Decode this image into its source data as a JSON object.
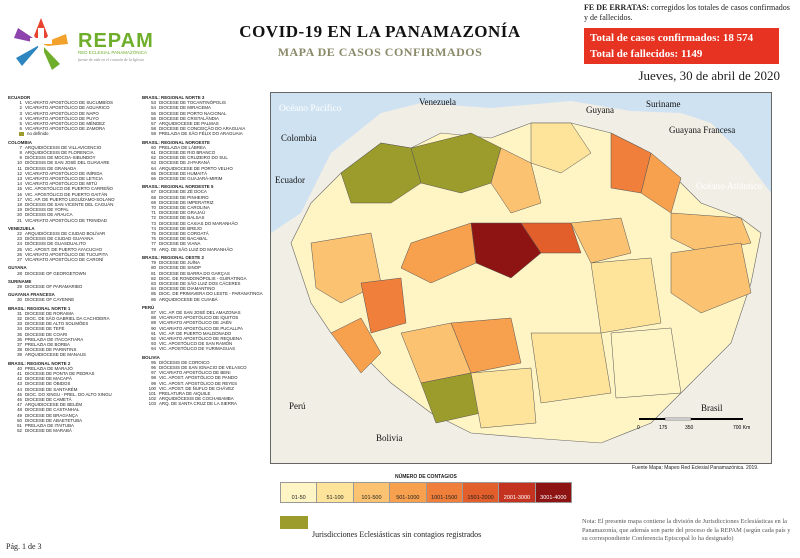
{
  "logo": {
    "name": "REPAM",
    "sub": "RED ECLESIAL PANAMAZÓNICA",
    "tagline": "fuente de vida en el corazón de la Iglesia"
  },
  "title": "COVID-19 EN LA PANAMAZONÍA",
  "subtitle": "MAPA DE CASOS CONFIRMADOS",
  "errata": {
    "label": "FE DE ERRATAS:",
    "text": "corregidos los totales de casos confirmados y de fallecidos."
  },
  "totals": {
    "confirmed_label": "Total de casos confirmados:",
    "confirmed": "18 574",
    "deaths_label": "Total de fallecidos:",
    "deaths": "1149"
  },
  "date": "Jueves, 30 de abril de 2020",
  "sections_left": [
    {
      "title": "ECUADOR",
      "items": [
        {
          "n": "1",
          "name": "VICARIATO APOSTÓLICO DE SUCUMBÍOS"
        },
        {
          "n": "2",
          "name": "VICARIATO APOSTÓLICO DE AGUARICO"
        },
        {
          "n": "3",
          "name": "VICARIATO APOSTÓLICO DE NAPO"
        },
        {
          "n": "4",
          "name": "VICARIATO APOSTÓLICO DE PUYO"
        },
        {
          "n": "5",
          "name": "VICARIATO APOSTÓLICO DE MÉNDEZ"
        },
        {
          "n": "6",
          "name": "VICARIATO APOSTÓLICO DE ZAMORA"
        },
        {
          "n": "",
          "name": "no definido",
          "swatch": true
        }
      ]
    },
    {
      "title": "COLOMBIA",
      "items": [
        {
          "n": "7",
          "name": "ARQUIDIÓCESIS DE VILLAVICENCIO"
        },
        {
          "n": "8",
          "name": "ARQUIDIÓCESIS DE FLORENCIA"
        },
        {
          "n": "9",
          "name": "DIÓCESIS DE MOCOA-SIBUNDOY"
        },
        {
          "n": "10",
          "name": "DIÓCESIS DE SAN JOSÉ DEL GUAVIARE"
        },
        {
          "n": "11",
          "name": "DIÓCESIS DE GRANADA"
        },
        {
          "n": "12",
          "name": "VICARIATO APOSTÓLICO DE INÍRIDA"
        },
        {
          "n": "13",
          "name": "VICARIATO APOSTÓLICO DE LETICIA"
        },
        {
          "n": "14",
          "name": "VICARIATO APOSTÓLICO DE MITÚ"
        },
        {
          "n": "15",
          "name": "VIC. APOSTÓLICO DE PUERTO CARREÑO"
        },
        {
          "n": "16",
          "name": "VIC. APOSTÓLICO DE PUERTO GAITÁN"
        },
        {
          "n": "17",
          "name": "VIC. AP. DE PUERTO LEGUÍZAMO-SOLANO"
        },
        {
          "n": "18",
          "name": "DIÓCESIS DE SAN VICENTE DEL CAGUÁN"
        },
        {
          "n": "19",
          "name": "DIÓCESIS DE YOPAL"
        },
        {
          "n": "20",
          "name": "DIÓCESIS DE ARAUCA"
        },
        {
          "n": "21",
          "name": "VICARIATO APOSTÓLICO DE TRINIDAD"
        }
      ]
    },
    {
      "title": "VENEZUELA",
      "items": [
        {
          "n": "22",
          "name": "ARQUIDIÓCESIS DE CIUDAD BOLÍVAR"
        },
        {
          "n": "23",
          "name": "DIÓCESIS DE CIUDAD GUAYANA"
        },
        {
          "n": "24",
          "name": "DIÓCESIS DE GUASDUALITO"
        },
        {
          "n": "25",
          "name": "VIC. APOST. DE PUERTO AYACUCHO"
        },
        {
          "n": "26",
          "name": "VICARIATO APOSTÓLICO DE TUCUPITA"
        },
        {
          "n": "27",
          "name": "VICARIATO APOSTÓLICO DE CARONÍ"
        }
      ]
    },
    {
      "title": "GUYANA",
      "items": [
        {
          "n": "28",
          "name": "DIOCESE OF GEORGETOWN"
        }
      ]
    },
    {
      "title": "SURINAME",
      "items": [
        {
          "n": "29",
          "name": "DIOCESE OF PARAMARIBO"
        }
      ]
    },
    {
      "title": "GUAYANA FRANCESA",
      "items": [
        {
          "n": "30",
          "name": "DIOCESE OF CAYENNE"
        }
      ]
    },
    {
      "title": "BRASIL: REGIONAL NORTE 1",
      "items": [
        {
          "n": "31",
          "name": "DIOCESE DE RORAIMA"
        },
        {
          "n": "32",
          "name": "DIOC. DE SÃO GABRIEL DA CACHOEIRA"
        },
        {
          "n": "33",
          "name": "DIOCESE DE ALTO SOLIMÕES"
        },
        {
          "n": "34",
          "name": "DIOCESE DE TEFÉ"
        },
        {
          "n": "35",
          "name": "DIOCESE DE COARI"
        },
        {
          "n": "36",
          "name": "PRELAZIA DE ITACOATIARA"
        },
        {
          "n": "37",
          "name": "PRELAZIA DE BORBA"
        },
        {
          "n": "38",
          "name": "DIOCESE DE PARINTINS"
        },
        {
          "n": "39",
          "name": "ARQUIDIOCESE DE MANAUS"
        }
      ]
    },
    {
      "title": "BRASIL: REGIONAL NORTE 2",
      "items": [
        {
          "n": "40",
          "name": "PRELAZIA DE MARAJÓ"
        },
        {
          "n": "41",
          "name": "DIOCESE DE PONTA DE PEDRAS"
        },
        {
          "n": "42",
          "name": "DIOCESE DE MACAPÁ"
        },
        {
          "n": "43",
          "name": "DIOCESE DE ÓBIDOS"
        },
        {
          "n": "44",
          "name": "DIOCESE DE SANTARÉM"
        },
        {
          "n": "45",
          "name": "DIOC. DO XINGU - PREL. DO ALTO XINGU"
        },
        {
          "n": "46",
          "name": "DIOCESE DE CAMETÁ"
        },
        {
          "n": "47",
          "name": "ARQUIDIOCESE DE BELÉM"
        },
        {
          "n": "48",
          "name": "DIOCESE DE CASTANHAL"
        },
        {
          "n": "49",
          "name": "DIOCESE DE BRAGANÇA"
        },
        {
          "n": "50",
          "name": "DIOCESE DE ABAETETUBA"
        },
        {
          "n": "51",
          "name": "PRELAZIA DE ITAITUBA"
        },
        {
          "n": "52",
          "name": "DIOCESE DE MARABÁ"
        }
      ]
    }
  ],
  "sections_mid": [
    {
      "title": "BRASIL: REGIONAL NORTE 3",
      "items": [
        {
          "n": "53",
          "name": "DIOCESE DE TOCANTINÓPOLIS"
        },
        {
          "n": "54",
          "name": "DIOCESE DE MIRACEMA"
        },
        {
          "n": "55",
          "name": "DIOCESE DE PORTO NACIONAL"
        },
        {
          "n": "56",
          "name": "DIOCESE DE CRISTALÂNDIA"
        },
        {
          "n": "57",
          "name": "ARQUIDIOCESE DE PALMAS"
        },
        {
          "n": "58",
          "name": "DIOCESE DE CONCEIÇÃO DO ARAGUAIA"
        },
        {
          "n": "59",
          "name": "PRELAZIA DE SÃO FÉLIX DO ARAGUAIA"
        }
      ]
    },
    {
      "title": "BRASIL: REGIONAL NOROESTE",
      "items": [
        {
          "n": "60",
          "name": "PRELAZIA DE LÁBREA"
        },
        {
          "n": "61",
          "name": "DIOCESE DE RIO BRANCO"
        },
        {
          "n": "62",
          "name": "DIOCESE DE CRUZEIRO DO SUL"
        },
        {
          "n": "63",
          "name": "DIOCESE DE JI-PARANÁ"
        },
        {
          "n": "64",
          "name": "ARQUIDIOCESE DE PORTO VELHO"
        },
        {
          "n": "65",
          "name": "DIOCESE DE HUMAITÁ"
        },
        {
          "n": "66",
          "name": "DIOCESE DE GUAJARÁ-MIRIM"
        }
      ]
    },
    {
      "title": "BRASIL: REGIONAL NORDESTE 5",
      "items": [
        {
          "n": "67",
          "name": "DIOCESE DE ZÉ DOCA"
        },
        {
          "n": "68",
          "name": "DIOCESE DE PINHEIRO"
        },
        {
          "n": "69",
          "name": "DIOCESE DE IMPERATRIZ"
        },
        {
          "n": "70",
          "name": "DIOCESE DE CAROLINA"
        },
        {
          "n": "71",
          "name": "DIOCESE DE GRAJAÚ"
        },
        {
          "n": "72",
          "name": "DIOCESE DE BALSAS"
        },
        {
          "n": "73",
          "name": "DIOCESE DE CAXIAS DO MARANHÃO"
        },
        {
          "n": "74",
          "name": "DIOCESE DE BREJO"
        },
        {
          "n": "75",
          "name": "DIOCESE DE COROATÁ"
        },
        {
          "n": "76",
          "name": "DIOCESE DE BACABAL"
        },
        {
          "n": "77",
          "name": "DIOCESE DE VIANA"
        },
        {
          "n": "78",
          "name": "ARQ. DE SÃO LUIZ DO MARANHÃO"
        }
      ]
    },
    {
      "title": "BRASIL: REGIONAL OESTE 2",
      "items": [
        {
          "n": "79",
          "name": "DIOCESE DE JUÍNA"
        },
        {
          "n": "80",
          "name": "DIOCESE DE SINOP"
        },
        {
          "n": "81",
          "name": "DIOCESE DE BARRA DO GARÇAS"
        },
        {
          "n": "82",
          "name": "DIOC. DE RONDONÓPOLIS - GUIRATINGA"
        },
        {
          "n": "83",
          "name": "DIOCESE DE SÃO LUIZ DOS CÁCERES"
        },
        {
          "n": "84",
          "name": "DIOCESE DE DIAMANTINO"
        },
        {
          "n": "85",
          "name": "DIOC. DE PRIMAVERA DO LESTE - PARANATINGA"
        },
        {
          "n": "86",
          "name": "ARQUIDIOCESE DE CUIABÁ"
        }
      ]
    },
    {
      "title": "PERÚ",
      "items": [
        {
          "n": "87",
          "name": "VIC. AP. DE SAN JOSÉ DEL AMAZONAS"
        },
        {
          "n": "88",
          "name": "VICARIATO APOSTÓLICO DE IQUITOS"
        },
        {
          "n": "89",
          "name": "VICARIATO APOSTÓLICO DE JAÉN"
        },
        {
          "n": "90",
          "name": "VICARIATO APOSTÓLICO DE PUCALLPA"
        },
        {
          "n": "91",
          "name": "VIC. AP. DE PUERTO MALDONADO"
        },
        {
          "n": "92",
          "name": "VICARIATO APOSTÓLICO DE REQUENA"
        },
        {
          "n": "93",
          "name": "VIC. APOSTÓLICO DE SAN RAMÓN"
        },
        {
          "n": "94",
          "name": "VIC. APOSTÓLICO DE YURIMAGUAS"
        }
      ]
    },
    {
      "title": "BOLIVIA",
      "items": [
        {
          "n": "95",
          "name": "DIÓCESIS DE COROICO"
        },
        {
          "n": "96",
          "name": "DIÓCESIS DE SAN IGNACIO DE VELASCO"
        },
        {
          "n": "97",
          "name": "VICARIATO APOSTÓLICO DE BENI"
        },
        {
          "n": "98",
          "name": "VIC. APOST. APOSTÓLICO DE PANDO"
        },
        {
          "n": "99",
          "name": "VIC. APOST. APOSTÓLICO DE REYES"
        },
        {
          "n": "100",
          "name": "VIC. APOST. DE ÑUFLO DE CHÁVEZ"
        },
        {
          "n": "101",
          "name": "PRELATURA DE AIQUILE"
        },
        {
          "n": "102",
          "name": "ARQUIDIÓCESIS DE COCHABAMBA"
        },
        {
          "n": "103",
          "name": "ARQ. DE SANTA CRUZ DE LA SIERRA"
        }
      ]
    }
  ],
  "map_labels": {
    "oceano_pacifico": "Océano Pacífico",
    "oceano_atlantico": "Océano Atlántico",
    "venezuela": "Venezuela",
    "colombia": "Colombia",
    "ecuador": "Ecuador",
    "guyana": "Guyana",
    "suriname": "Suriname",
    "guayana_francesa": "Guayana Francesa",
    "peru": "Perú",
    "bolivia": "Bolivia",
    "brasil": "Brasil"
  },
  "scale": {
    "ticks": [
      "0",
      "175",
      "350",
      "700 Km"
    ]
  },
  "legend": {
    "title": "NÚMERO DE CONTAGIOS",
    "bins": [
      {
        "label": "01-50",
        "color": "#fff4c4"
      },
      {
        "label": "51-100",
        "color": "#fde49a"
      },
      {
        "label": "101-500",
        "color": "#fbc371"
      },
      {
        "label": "501-1000",
        "color": "#f7a04e"
      },
      {
        "label": "1001-1500",
        "color": "#ef7f3a"
      },
      {
        "label": "1501-2000",
        "color": "#e25e2a"
      },
      {
        "label": "2001-3000",
        "color": "#c43320"
      },
      {
        "label": "3001-4000",
        "color": "#8e1414"
      }
    ],
    "no_cases_label": "Jurisdicciones Eclesiásticas sin contagios registrados",
    "no_cases_color": "#9c9c2c"
  },
  "source": "Fuente Mapa: Mapeo Red Eclesial Panamazónica. 2019.",
  "note": "Nota: El presente mapa contiene la división de Jurisdicciones Eclesiásticas en la Panamazonía, que además son parte del proceso de la REPAM (según cada país y su correspondiente Conferencia Episcopal lo ha designado)",
  "page": "Pág. 1 de 3"
}
